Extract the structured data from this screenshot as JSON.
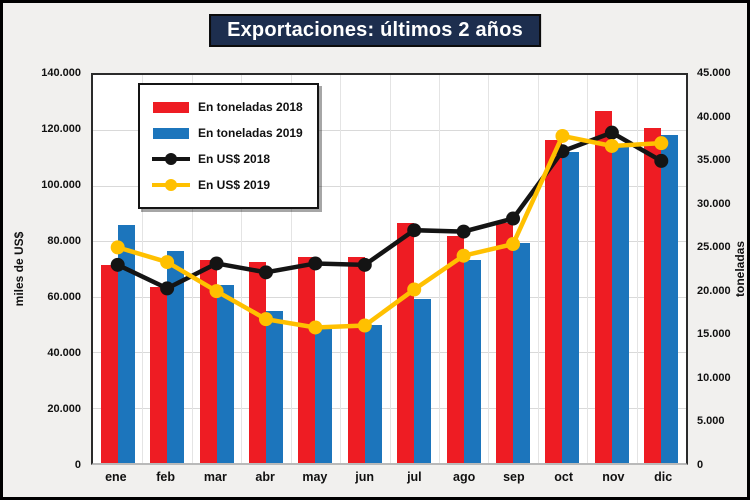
{
  "title": "Exportaciones: últimos 2 años",
  "colors": {
    "bar_2018": "#ee1c23",
    "bar_2019": "#1c75bc",
    "line_2018": "#141414",
    "line_2019": "#ffc000",
    "title_bg": "#1d2e4e",
    "page_bg": "#f1f0ee",
    "grid": "#d9d9d9"
  },
  "chart_data": {
    "type": "bar",
    "subtype": "bar+line combo, dual axis",
    "title": "Exportaciones: últimos 2 años",
    "categories": [
      "ene",
      "feb",
      "mar",
      "abr",
      "may",
      "jun",
      "jul",
      "ago",
      "sep",
      "oct",
      "nov",
      "dic"
    ],
    "left_axis": {
      "label": "miles de US$",
      "min": 0,
      "max": 140000,
      "tick_step": 20000,
      "tick_labels": [
        "0",
        "20.000",
        "40.000",
        "60.000",
        "80.000",
        "100.000",
        "120.000",
        "140.000"
      ]
    },
    "right_axis": {
      "label": "toneladas",
      "min": 0,
      "max": 45000,
      "tick_step": 5000,
      "tick_labels": [
        "0",
        "5.000",
        "10.000",
        "15.000",
        "20.000",
        "25.000",
        "30.000",
        "35.000",
        "40.000",
        "45.000"
      ]
    },
    "grid": true,
    "legend_position": "top-left",
    "series": [
      {
        "name": "En toneladas 2018",
        "type": "bar",
        "axis": "right",
        "color": "#ee1c23",
        "values": [
          23000,
          20400,
          23600,
          23300,
          23900,
          23900,
          27800,
          26300,
          27800,
          37500,
          40800,
          38800
        ]
      },
      {
        "name": "En toneladas 2019",
        "type": "bar",
        "axis": "right",
        "color": "#1c75bc",
        "values": [
          27600,
          24600,
          20600,
          17600,
          15700,
          16000,
          19000,
          23500,
          25500,
          36100,
          36800,
          38000
        ]
      },
      {
        "name": "En US$ 2018",
        "type": "line",
        "axis": "left",
        "color": "#141414",
        "values": [
          71500,
          63000,
          72000,
          68800,
          72000,
          71500,
          84000,
          83500,
          88200,
          112500,
          119200,
          109000
        ]
      },
      {
        "name": "En US$ 2019",
        "type": "line",
        "axis": "left",
        "color": "#ffc000",
        "values": [
          77800,
          72500,
          62000,
          51900,
          48900,
          49600,
          62600,
          74800,
          79000,
          118000,
          114400,
          115400
        ]
      }
    ]
  }
}
